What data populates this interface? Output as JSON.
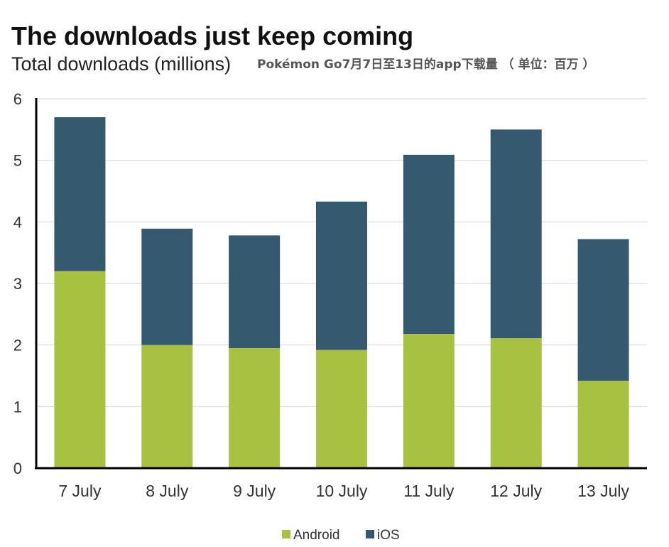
{
  "chart_data": {
    "type": "bar",
    "stacked": true,
    "title": "The downloads just keep coming",
    "subtitle": "Total downloads (millions)",
    "annotation": "Pokémon Go7月7日至13日的app下载量 （ 单位：百万 ）",
    "categories": [
      "7 July",
      "8 July",
      "9 July",
      "10 July",
      "11 July",
      "12 July",
      "13 July"
    ],
    "series": [
      {
        "name": "Android",
        "color": "#a8c140",
        "values": [
          3.2,
          2.0,
          1.95,
          1.92,
          2.18,
          2.11,
          1.42
        ]
      },
      {
        "name": "iOS",
        "color": "#35596e",
        "values": [
          2.5,
          1.89,
          1.83,
          2.41,
          2.91,
          3.39,
          2.3
        ]
      }
    ],
    "ylim": [
      0,
      6
    ],
    "yticks": [
      "0",
      "1",
      "2",
      "3",
      "4",
      "5",
      "6"
    ],
    "grid": true,
    "legend_position": "bottom-center"
  }
}
